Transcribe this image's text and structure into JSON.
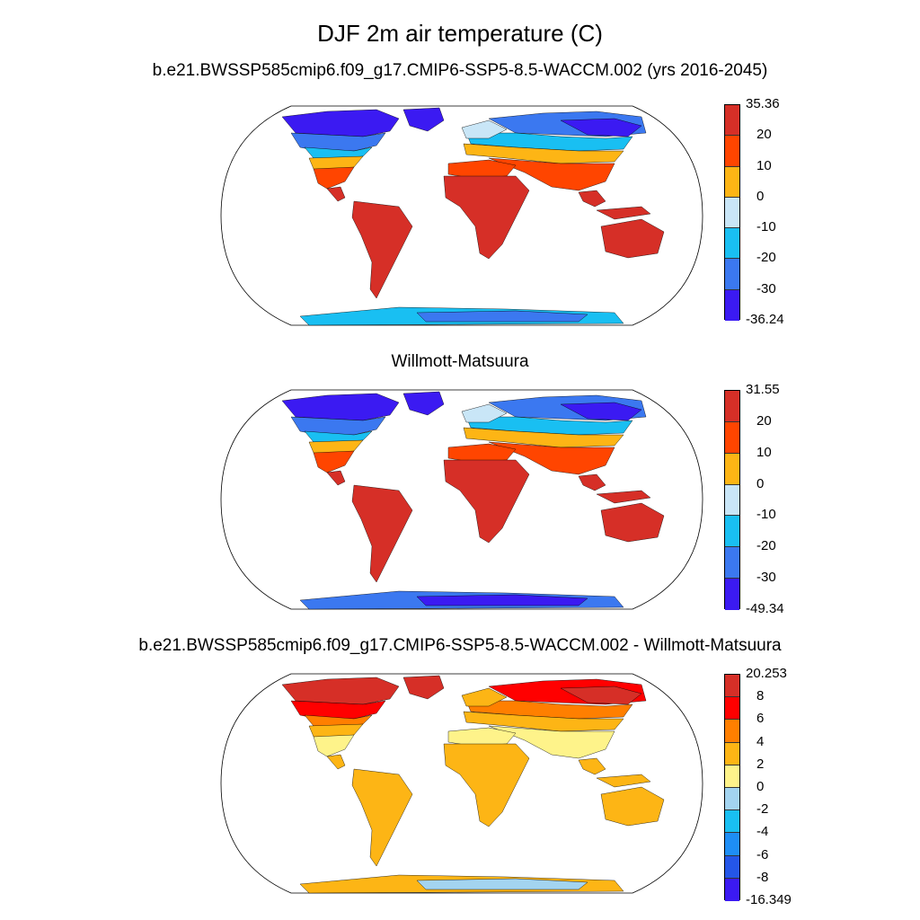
{
  "figure": {
    "title": "DJF 2m air temperature (C)"
  },
  "panels": [
    {
      "id": "model",
      "title": "b.e21.BWSSP585cmip6.f09_g17.CMIP6-SSP5-8.5-WACCM.002 (yrs 2016-2045)",
      "colorbar": {
        "labels": [
          "35.36",
          "20",
          "10",
          "0",
          "-10",
          "-20",
          "-30",
          "-36.24"
        ],
        "colors": [
          "#d62f27",
          "#ff4500",
          "#fdb515",
          "#c9e6f7",
          "#19bff2",
          "#3b78f0",
          "#3b1af2"
        ]
      },
      "region_colors": {
        "polar": "#3b1af2",
        "arctic": "#3b78f0",
        "subarctic": "#19bff2",
        "cool": "#c9e6f7",
        "mild": "#fdb515",
        "warm": "#ff4500",
        "hot": "#d62f27",
        "antarctic": "#19bff2",
        "antarctic_inner": "#3b78f0"
      }
    },
    {
      "id": "obs",
      "title": "Willmott-Matsuura",
      "colorbar": {
        "labels": [
          "31.55",
          "20",
          "10",
          "0",
          "-10",
          "-20",
          "-30",
          "-49.34"
        ],
        "colors": [
          "#d62f27",
          "#ff4500",
          "#fdb515",
          "#c9e6f7",
          "#19bff2",
          "#3b78f0",
          "#3b1af2"
        ]
      },
      "region_colors": {
        "polar": "#3b1af2",
        "arctic": "#3b78f0",
        "subarctic": "#19bff2",
        "cool": "#c9e6f7",
        "mild": "#fdb515",
        "warm": "#ff4500",
        "hot": "#d62f27",
        "antarctic": "#3b78f0",
        "antarctic_inner": "#3b1af2"
      }
    },
    {
      "id": "diff",
      "title": "b.e21.BWSSP585cmip6.f09_g17.CMIP6-SSP5-8.5-WACCM.002 - Willmott-Matsuura",
      "colorbar": {
        "labels": [
          "20.253",
          "8",
          "6",
          "4",
          "2",
          "0",
          "-2",
          "-4",
          "-6",
          "-8",
          "-16.349"
        ],
        "colors": [
          "#d62f27",
          "#ff0000",
          "#ff7f00",
          "#fdb515",
          "#fef38a",
          "#a3d4f0",
          "#19bff2",
          "#1e8ef5",
          "#2456e8",
          "#3b1af2"
        ]
      },
      "region_colors": {
        "polar": "#d62f27",
        "arctic": "#ff0000",
        "subarctic": "#ff7f00",
        "cool": "#fdb515",
        "mild": "#fdb515",
        "warm": "#fef38a",
        "hot": "#fdb515",
        "antarctic": "#fdb515",
        "antarctic_inner": "#a3d4f0"
      }
    }
  ]
}
